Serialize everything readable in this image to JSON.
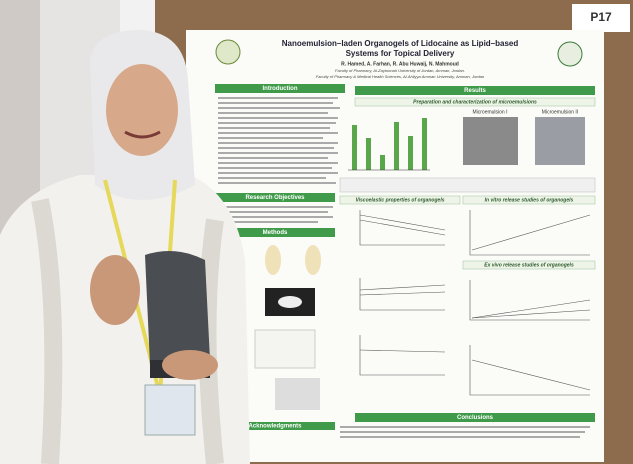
{
  "badge": "P17",
  "poster": {
    "title": [
      "Nanoemulsion–laden Organogels of Lidocaine as Lipid–based",
      "Systems for Topical Delivery"
    ],
    "authors": "R. Hamed, A. Farhan, R. Abu Huwaij, N. Mahmoud",
    "affiliations": [
      "Faculty of Pharmacy, Al-Zaytoonah University of Jordan, Amman, Jordan.",
      "Faculty of Pharmacy & Medical Health Sciences, Al-Ahliyya Amman University, Amman, Jordan"
    ],
    "sections": {
      "introduction": "Introduction",
      "results": "Results",
      "objectives": "Research Objectives",
      "methods": "Methods",
      "conclusions": "Conclusions",
      "acknowledgments": "Acknowledgments"
    },
    "subsections": {
      "preparation": "Preparation and characterization of microemulsions",
      "viscoelastic": "Viscoelastic properties of organogels",
      "in_vitro": "In vitro release studies of organogels",
      "ex_vivo": "Ex vivo release studies of organogels"
    },
    "images": {
      "me1": "Microemulsion I",
      "me2": "Microemulsion II"
    }
  }
}
